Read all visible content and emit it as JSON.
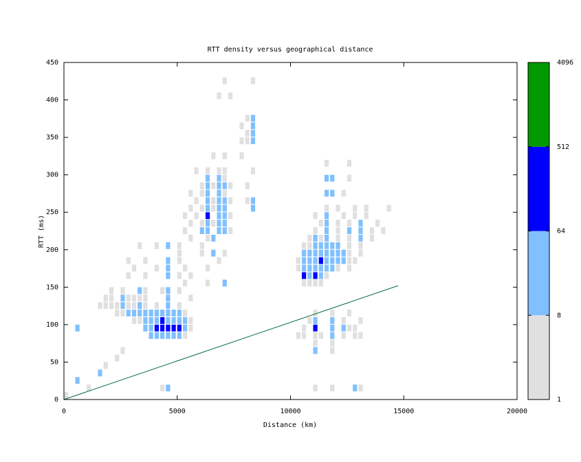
{
  "chart_data": {
    "type": "heatmap",
    "title": "RTT density versus geographical distance",
    "xlabel": "Distance (km)",
    "ylabel": "RTT (ms)",
    "xlim": [
      0,
      20000
    ],
    "ylim": [
      0,
      450
    ],
    "xticks": [
      0,
      5000,
      10000,
      15000,
      20000
    ],
    "yticks": [
      0,
      50,
      100,
      150,
      200,
      250,
      300,
      350,
      400,
      450
    ],
    "colorbar": {
      "ticks": [
        1,
        8,
        64,
        512,
        4096
      ],
      "log": true,
      "colors": [
        "#e0e0e0",
        "#80c0ff",
        "#0000ff",
        "#009900"
      ]
    },
    "line": {
      "x": [
        0,
        14750
      ],
      "y": [
        0,
        152
      ],
      "color": "#006a3a"
    },
    "cells": [
      [
        3750,
        80,
        12
      ],
      [
        4000,
        80,
        20
      ],
      [
        4250,
        80,
        30
      ],
      [
        4500,
        80,
        25
      ],
      [
        4750,
        80,
        20
      ],
      [
        5000,
        80,
        15
      ],
      [
        5250,
        80,
        5
      ],
      [
        3500,
        90,
        10
      ],
      [
        3750,
        90,
        30
      ],
      [
        4000,
        90,
        120
      ],
      [
        4250,
        90,
        200
      ],
      [
        4500,
        90,
        90
      ],
      [
        4750,
        90,
        150
      ],
      [
        5000,
        90,
        110
      ],
      [
        5250,
        90,
        20
      ],
      [
        5500,
        90,
        4
      ],
      [
        3000,
        100,
        5
      ],
      [
        3250,
        100,
        6
      ],
      [
        3500,
        100,
        20
      ],
      [
        3750,
        100,
        25
      ],
      [
        4000,
        100,
        40
      ],
      [
        4250,
        100,
        100
      ],
      [
        4500,
        100,
        30
      ],
      [
        4750,
        100,
        35
      ],
      [
        5000,
        100,
        25
      ],
      [
        5250,
        100,
        15
      ],
      [
        5500,
        100,
        5
      ],
      [
        2250,
        110,
        5
      ],
      [
        2500,
        110,
        4
      ],
      [
        2750,
        110,
        12
      ],
      [
        3000,
        110,
        10
      ],
      [
        3250,
        110,
        15
      ],
      [
        3500,
        110,
        20
      ],
      [
        3750,
        110,
        12
      ],
      [
        4000,
        110,
        20
      ],
      [
        4250,
        110,
        15
      ],
      [
        4500,
        110,
        18
      ],
      [
        4750,
        110,
        12
      ],
      [
        5000,
        110,
        10
      ],
      [
        5250,
        110,
        6
      ],
      [
        1500,
        120,
        3
      ],
      [
        1750,
        120,
        4
      ],
      [
        2000,
        120,
        5
      ],
      [
        2250,
        120,
        6
      ],
      [
        2500,
        120,
        12
      ],
      [
        2750,
        120,
        6
      ],
      [
        3000,
        120,
        7
      ],
      [
        3250,
        120,
        10
      ],
      [
        3500,
        120,
        6
      ],
      [
        4000,
        120,
        5
      ],
      [
        4500,
        120,
        10
      ],
      [
        5000,
        120,
        4
      ],
      [
        1750,
        130,
        3
      ],
      [
        2000,
        130,
        4
      ],
      [
        2500,
        130,
        15
      ],
      [
        2750,
        130,
        5
      ],
      [
        3000,
        130,
        4
      ],
      [
        3250,
        130,
        6
      ],
      [
        3500,
        130,
        5
      ],
      [
        4500,
        130,
        12
      ],
      [
        5500,
        130,
        3
      ],
      [
        2000,
        140,
        3
      ],
      [
        2500,
        140,
        5
      ],
      [
        3250,
        140,
        10
      ],
      [
        3500,
        140,
        4
      ],
      [
        4250,
        140,
        3
      ],
      [
        4500,
        140,
        15
      ],
      [
        5000,
        140,
        3
      ],
      [
        2750,
        160,
        3
      ],
      [
        3500,
        160,
        3
      ],
      [
        4500,
        160,
        10
      ],
      [
        5000,
        160,
        4
      ],
      [
        5500,
        160,
        3
      ],
      [
        3000,
        170,
        3
      ],
      [
        4000,
        170,
        3
      ],
      [
        4500,
        170,
        12
      ],
      [
        5250,
        170,
        4
      ],
      [
        6250,
        170,
        3
      ],
      [
        2750,
        180,
        2
      ],
      [
        3500,
        180,
        3
      ],
      [
        4500,
        180,
        10
      ],
      [
        5000,
        180,
        3
      ],
      [
        6750,
        180,
        4
      ],
      [
        3250,
        200,
        3
      ],
      [
        4000,
        200,
        2
      ],
      [
        4500,
        200,
        9
      ],
      [
        5000,
        200,
        3
      ],
      [
        6000,
        200,
        5
      ],
      [
        10500,
        150,
        4
      ],
      [
        10750,
        150,
        5
      ],
      [
        11000,
        150,
        6
      ],
      [
        11250,
        150,
        4
      ],
      [
        10500,
        160,
        120
      ],
      [
        10750,
        160,
        30
      ],
      [
        11000,
        160,
        150
      ],
      [
        11250,
        160,
        20
      ],
      [
        11500,
        160,
        5
      ],
      [
        10250,
        170,
        5
      ],
      [
        10500,
        170,
        40
      ],
      [
        10750,
        170,
        25
      ],
      [
        11000,
        170,
        30
      ],
      [
        11250,
        170,
        45
      ],
      [
        11500,
        170,
        20
      ],
      [
        11750,
        170,
        10
      ],
      [
        12000,
        170,
        6
      ],
      [
        12500,
        170,
        4
      ],
      [
        10250,
        180,
        6
      ],
      [
        10500,
        180,
        20
      ],
      [
        10750,
        180,
        25
      ],
      [
        11000,
        180,
        30
      ],
      [
        11250,
        180,
        150
      ],
      [
        11500,
        180,
        35
      ],
      [
        11750,
        180,
        30
      ],
      [
        12000,
        180,
        25
      ],
      [
        12250,
        180,
        12
      ],
      [
        12500,
        180,
        6
      ],
      [
        12750,
        180,
        4
      ],
      [
        10500,
        190,
        10
      ],
      [
        10750,
        190,
        15
      ],
      [
        11000,
        190,
        20
      ],
      [
        11250,
        190,
        25
      ],
      [
        11500,
        190,
        30
      ],
      [
        11750,
        190,
        25
      ],
      [
        12000,
        190,
        20
      ],
      [
        12250,
        190,
        10
      ],
      [
        12500,
        190,
        6
      ],
      [
        13000,
        190,
        4
      ],
      [
        10500,
        200,
        5
      ],
      [
        10750,
        200,
        6
      ],
      [
        11000,
        200,
        12
      ],
      [
        11250,
        200,
        15
      ],
      [
        11500,
        200,
        10
      ],
      [
        11750,
        200,
        12
      ],
      [
        12000,
        200,
        8
      ],
      [
        12500,
        200,
        5
      ],
      [
        13000,
        200,
        6
      ],
      [
        10750,
        210,
        4
      ],
      [
        11000,
        210,
        10
      ],
      [
        11250,
        210,
        6
      ],
      [
        11500,
        210,
        9
      ],
      [
        12000,
        210,
        5
      ],
      [
        12500,
        210,
        7
      ],
      [
        13000,
        210,
        10
      ],
      [
        13500,
        210,
        3
      ],
      [
        11000,
        220,
        5
      ],
      [
        11500,
        220,
        8
      ],
      [
        12000,
        220,
        4
      ],
      [
        12500,
        220,
        10
      ],
      [
        13000,
        220,
        12
      ],
      [
        13500,
        220,
        4
      ],
      [
        14000,
        220,
        3
      ],
      [
        11250,
        230,
        4
      ],
      [
        11500,
        230,
        10
      ],
      [
        12000,
        230,
        6
      ],
      [
        12500,
        230,
        5
      ],
      [
        13000,
        230,
        10
      ],
      [
        13750,
        230,
        3
      ],
      [
        11000,
        240,
        3
      ],
      [
        11500,
        240,
        9
      ],
      [
        12250,
        240,
        4
      ],
      [
        12750,
        240,
        5
      ],
      [
        13250,
        240,
        3
      ],
      [
        11500,
        250,
        5
      ],
      [
        12000,
        250,
        3
      ],
      [
        12750,
        250,
        4
      ],
      [
        13250,
        250,
        3
      ],
      [
        14250,
        250,
        2
      ],
      [
        11500,
        270,
        10
      ],
      [
        11750,
        270,
        8
      ],
      [
        12250,
        270,
        3
      ],
      [
        11500,
        290,
        10
      ],
      [
        11750,
        290,
        9
      ],
      [
        12500,
        290,
        3
      ],
      [
        11500,
        310,
        3
      ],
      [
        12500,
        310,
        3
      ],
      [
        10250,
        80,
        3
      ],
      [
        10500,
        80,
        4
      ],
      [
        11000,
        80,
        5
      ],
      [
        11250,
        80,
        3
      ],
      [
        11750,
        80,
        10
      ],
      [
        12250,
        80,
        4
      ],
      [
        12750,
        80,
        5
      ],
      [
        13000,
        80,
        4
      ],
      [
        10500,
        90,
        3
      ],
      [
        11000,
        90,
        100
      ],
      [
        11750,
        90,
        12
      ],
      [
        12250,
        90,
        9
      ],
      [
        12500,
        90,
        4
      ],
      [
        12750,
        90,
        5
      ],
      [
        10750,
        100,
        4
      ],
      [
        11000,
        100,
        10
      ],
      [
        11750,
        100,
        8
      ],
      [
        12250,
        100,
        5
      ],
      [
        13000,
        100,
        3
      ],
      [
        11000,
        110,
        5
      ],
      [
        11750,
        110,
        4
      ],
      [
        12500,
        110,
        3
      ],
      [
        11000,
        70,
        6
      ],
      [
        11750,
        70,
        5
      ],
      [
        11000,
        60,
        10
      ],
      [
        11750,
        60,
        3
      ],
      [
        11000,
        10,
        3
      ],
      [
        11750,
        10,
        2
      ],
      [
        12750,
        10,
        10
      ],
      [
        13000,
        10,
        3
      ],
      [
        5250,
        220,
        4
      ],
      [
        6000,
        220,
        10
      ],
      [
        6250,
        220,
        15
      ],
      [
        6750,
        220,
        8
      ],
      [
        7000,
        220,
        12
      ],
      [
        7250,
        220,
        5
      ],
      [
        5500,
        230,
        4
      ],
      [
        6000,
        230,
        5
      ],
      [
        6250,
        230,
        12
      ],
      [
        6500,
        230,
        6
      ],
      [
        6750,
        230,
        15
      ],
      [
        7000,
        230,
        10
      ],
      [
        5250,
        240,
        3
      ],
      [
        5750,
        240,
        4
      ],
      [
        6250,
        240,
        120
      ],
      [
        6750,
        240,
        20
      ],
      [
        7000,
        240,
        12
      ],
      [
        7250,
        240,
        4
      ],
      [
        5500,
        250,
        5
      ],
      [
        6000,
        250,
        6
      ],
      [
        6250,
        250,
        10
      ],
      [
        6500,
        250,
        4
      ],
      [
        6750,
        250,
        8
      ],
      [
        7000,
        250,
        14
      ],
      [
        5750,
        260,
        6
      ],
      [
        6250,
        260,
        15
      ],
      [
        6500,
        260,
        5
      ],
      [
        6750,
        260,
        12
      ],
      [
        7000,
        260,
        10
      ],
      [
        7250,
        260,
        4
      ],
      [
        5500,
        270,
        4
      ],
      [
        6000,
        270,
        4
      ],
      [
        6250,
        270,
        12
      ],
      [
        6750,
        270,
        15
      ],
      [
        7000,
        270,
        5
      ],
      [
        6000,
        280,
        5
      ],
      [
        6250,
        280,
        10
      ],
      [
        6500,
        280,
        6
      ],
      [
        6750,
        280,
        10
      ],
      [
        7000,
        280,
        12
      ],
      [
        7250,
        280,
        3
      ],
      [
        6250,
        290,
        12
      ],
      [
        6750,
        290,
        8
      ],
      [
        7000,
        290,
        5
      ],
      [
        5750,
        300,
        3
      ],
      [
        6250,
        300,
        5
      ],
      [
        6750,
        300,
        4
      ],
      [
        7000,
        300,
        6
      ],
      [
        5000,
        190,
        4
      ],
      [
        6000,
        190,
        5
      ],
      [
        6500,
        190,
        10
      ],
      [
        7000,
        190,
        3
      ],
      [
        5500,
        210,
        4
      ],
      [
        6500,
        210,
        8
      ],
      [
        6250,
        210,
        5
      ],
      [
        6250,
        150,
        3
      ],
      [
        7000,
        150,
        10
      ],
      [
        5250,
        150,
        3
      ],
      [
        6500,
        320,
        3
      ],
      [
        7000,
        320,
        3
      ],
      [
        7750,
        320,
        3
      ],
      [
        7750,
        340,
        4
      ],
      [
        8000,
        340,
        6
      ],
      [
        8250,
        340,
        10
      ],
      [
        8000,
        350,
        5
      ],
      [
        8250,
        350,
        15
      ],
      [
        7750,
        360,
        3
      ],
      [
        8250,
        360,
        12
      ],
      [
        8000,
        370,
        4
      ],
      [
        8250,
        370,
        10
      ],
      [
        8250,
        300,
        5
      ],
      [
        8000,
        260,
        4
      ],
      [
        8250,
        260,
        10
      ],
      [
        8250,
        250,
        12
      ],
      [
        8000,
        280,
        3
      ],
      [
        6750,
        400,
        3
      ],
      [
        7250,
        400,
        3
      ],
      [
        7000,
        420,
        2
      ],
      [
        8250,
        420,
        3
      ],
      [
        500,
        20,
        12
      ],
      [
        0,
        0,
        4
      ],
      [
        1500,
        30,
        10
      ],
      [
        1750,
        40,
        5
      ],
      [
        2250,
        50,
        3
      ],
      [
        500,
        90,
        9
      ],
      [
        4500,
        10,
        12
      ],
      [
        4250,
        10,
        3
      ],
      [
        1000,
        10,
        2
      ],
      [
        2500,
        60,
        3
      ]
    ]
  }
}
